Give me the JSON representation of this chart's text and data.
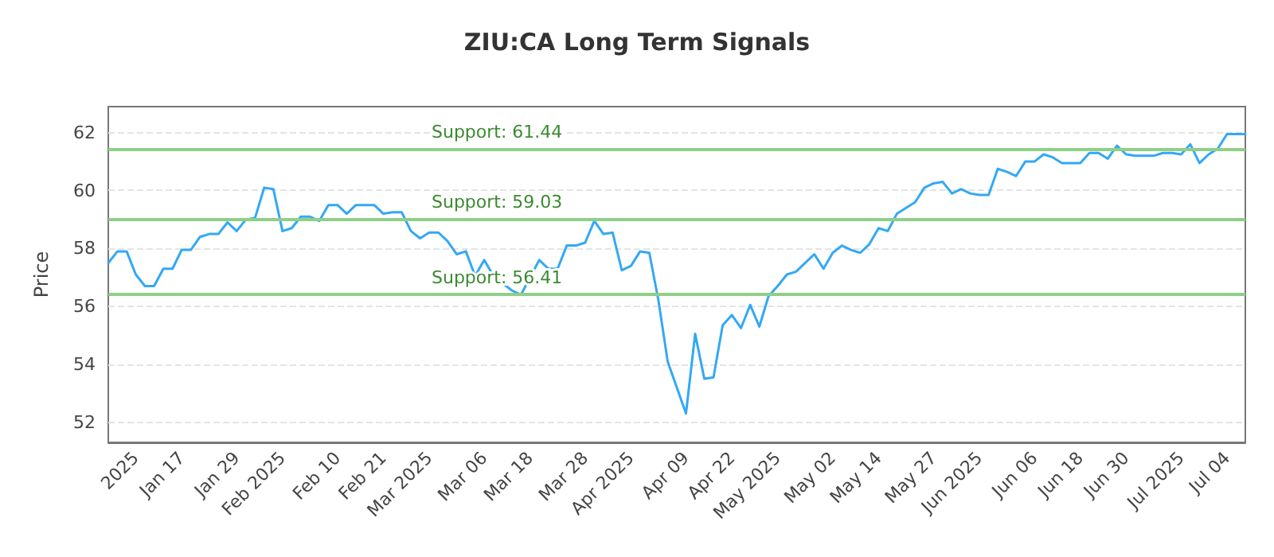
{
  "chart_data": {
    "type": "line",
    "title": "ZIU:CA Long Term Signals",
    "ylabel": "Price",
    "categories": [
      null,
      null,
      null,
      "2025",
      null,
      null,
      null,
      null,
      "Jan 17",
      null,
      null,
      null,
      null,
      null,
      "Jan 29",
      null,
      null,
      null,
      null,
      "Feb 2025",
      null,
      null,
      null,
      null,
      null,
      "Feb 10",
      null,
      null,
      null,
      null,
      "Feb 21",
      null,
      null,
      null,
      null,
      "Mar 2025",
      null,
      null,
      null,
      null,
      null,
      "Mar 06",
      null,
      null,
      null,
      null,
      "Mar 18",
      null,
      null,
      null,
      null,
      null,
      "Mar 28",
      null,
      null,
      null,
      null,
      "Apr 2025",
      null,
      null,
      null,
      null,
      null,
      "Apr 09",
      null,
      null,
      null,
      null,
      "Apr 22",
      null,
      null,
      null,
      null,
      "May 2025",
      null,
      null,
      null,
      null,
      null,
      "May 02",
      null,
      null,
      null,
      null,
      "May 14",
      null,
      null,
      null,
      null,
      null,
      "May 27",
      null,
      null,
      null,
      null,
      "Jun 2025",
      null,
      null,
      null,
      null,
      null,
      "Jun 06",
      null,
      null,
      null,
      null,
      "Jun 18",
      null,
      null,
      null,
      null,
      "Jun 30",
      null,
      null,
      null,
      null,
      null,
      "Jul 2025",
      null,
      null,
      null,
      null,
      "Jul 04",
      null,
      null
    ],
    "series": [
      {
        "color": "#33a8f5",
        "values": [
          57.5,
          57.9,
          57.9,
          57.1,
          56.7,
          56.7,
          57.3,
          57.3,
          57.95,
          57.95,
          58.4,
          58.5,
          58.5,
          58.9,
          58.6,
          59.0,
          59.05,
          60.1,
          60.05,
          58.6,
          58.7,
          59.1,
          59.1,
          58.95,
          59.5,
          59.5,
          59.2,
          59.5,
          59.5,
          59.5,
          59.2,
          59.25,
          59.25,
          58.6,
          58.35,
          58.55,
          58.55,
          58.25,
          57.8,
          57.9,
          57.05,
          57.6,
          57.05,
          56.8,
          56.55,
          56.4,
          57.0,
          57.6,
          57.3,
          57.3,
          58.1,
          58.1,
          58.2,
          58.95,
          58.5,
          58.55,
          57.25,
          57.4,
          57.9,
          57.85,
          56.2,
          54.1,
          53.2,
          52.3,
          55.05,
          53.5,
          53.55,
          55.35,
          55.7,
          55.25,
          56.05,
          55.3,
          56.35,
          56.7,
          57.1,
          57.2,
          57.5,
          57.8,
          57.3,
          57.85,
          58.1,
          57.95,
          57.85,
          58.15,
          58.7,
          58.6,
          59.2,
          59.4,
          59.6,
          60.1,
          60.25,
          60.3,
          59.9,
          60.05,
          59.9,
          59.85,
          59.85,
          60.75,
          60.65,
          60.5,
          61.0,
          61.0,
          61.25,
          61.15,
          60.95,
          60.95,
          60.95,
          61.3,
          61.3,
          61.1,
          61.55,
          61.25,
          61.2,
          61.2,
          61.2,
          61.3,
          61.3,
          61.25,
          61.6,
          60.95,
          61.25,
          61.45,
          61.95,
          61.95,
          61.95
        ]
      }
    ],
    "ylim": [
      51.3,
      62.9
    ],
    "yticks": [
      52,
      54,
      56,
      58,
      60,
      62
    ],
    "grid": "y",
    "marker": "none",
    "line_style": "solid",
    "ref_lines": [
      {
        "axis": "y",
        "value": 61.44,
        "label": "Support: 61.44",
        "color": "#8fcf87"
      },
      {
        "axis": "y",
        "value": 59.03,
        "label": "Support: 59.03",
        "color": "#8fcf87"
      },
      {
        "axis": "y",
        "value": 56.41,
        "label": "Support: 56.41",
        "color": "#8fcf87"
      }
    ]
  }
}
